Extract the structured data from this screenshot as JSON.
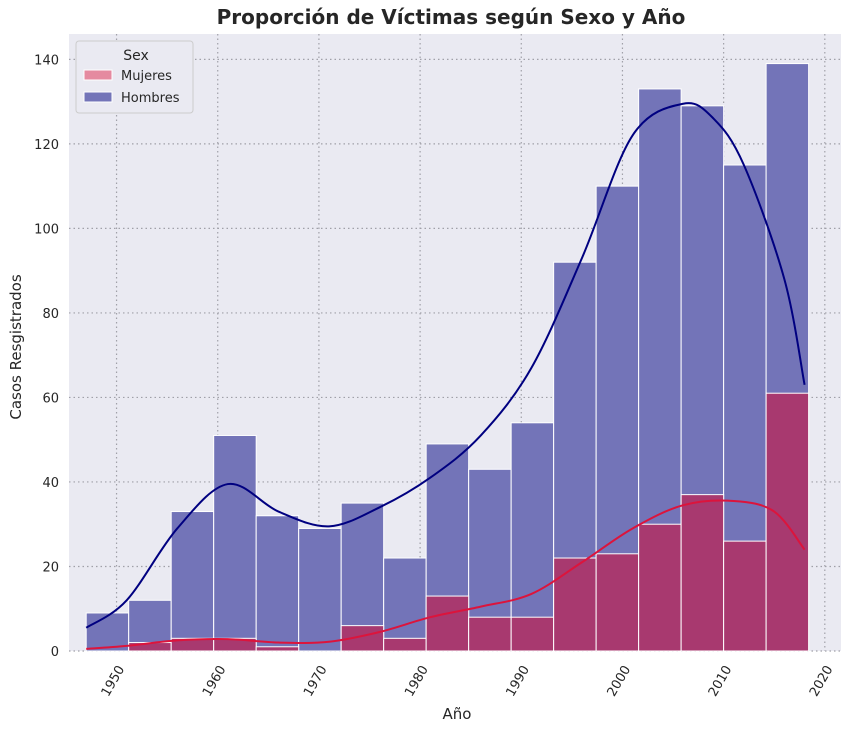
{
  "chart_data": {
    "type": "bar",
    "title": "Proporción de Víctimas según Sexo y Año",
    "xlabel": "Año",
    "ylabel": "Casos Resgistrados",
    "xlim": [
      1945.3,
      2021.6
    ],
    "ylim": [
      0,
      146
    ],
    "x_ticks": [
      1950,
      1960,
      1970,
      1980,
      1990,
      2000,
      2010,
      2020
    ],
    "y_ticks": [
      0,
      20,
      40,
      60,
      80,
      100,
      120,
      140
    ],
    "grid": true,
    "legend": {
      "title": "Sex",
      "placement": "top-left"
    },
    "bin_edges": [
      1947,
      1951.2,
      1955.4,
      1959.6,
      1963.8,
      1968,
      1972.2,
      1976.4,
      1980.6,
      1984.8,
      1989,
      1993.2,
      1997.4,
      2001.6,
      2005.8,
      2010,
      2014.2,
      2018.4
    ],
    "series": [
      {
        "name": "Mujeres",
        "color": "#a8396f",
        "values": [
          0,
          2,
          3,
          3,
          1,
          0,
          6,
          3,
          13,
          8,
          8,
          22,
          23,
          30,
          37,
          26,
          61
        ],
        "kde": {
          "color": "#dc143c",
          "x": [
            1947,
            1951,
            1956,
            1961,
            1966,
            1971,
            1976,
            1981,
            1986,
            1991,
            1996,
            2001,
            2006,
            2011,
            2015,
            2018
          ],
          "y": [
            0.5,
            1.2,
            2.5,
            2.8,
            2.0,
            2.2,
            4.5,
            8.0,
            10.5,
            13.5,
            21.0,
            29.0,
            34.5,
            35.5,
            33.0,
            24.0
          ]
        }
      },
      {
        "name": "Hombres",
        "color": "#7374b8",
        "values": [
          9,
          12,
          33,
          51,
          32,
          29,
          35,
          22,
          49,
          43,
          54,
          92,
          110,
          133,
          129,
          115,
          139
        ],
        "kde": {
          "color": "#000080",
          "x": [
            1947,
            1951,
            1956,
            1961,
            1966,
            1971,
            1976,
            1981,
            1986,
            1991,
            1996,
            2001,
            2006,
            2009,
            2012,
            2016,
            2018
          ],
          "y": [
            5.5,
            12.0,
            29.0,
            39.5,
            33.0,
            29.5,
            34.0,
            41.0,
            51.0,
            67.0,
            93.0,
            122.0,
            129.5,
            126.0,
            115.0,
            88.0,
            63.0
          ]
        }
      }
    ]
  }
}
